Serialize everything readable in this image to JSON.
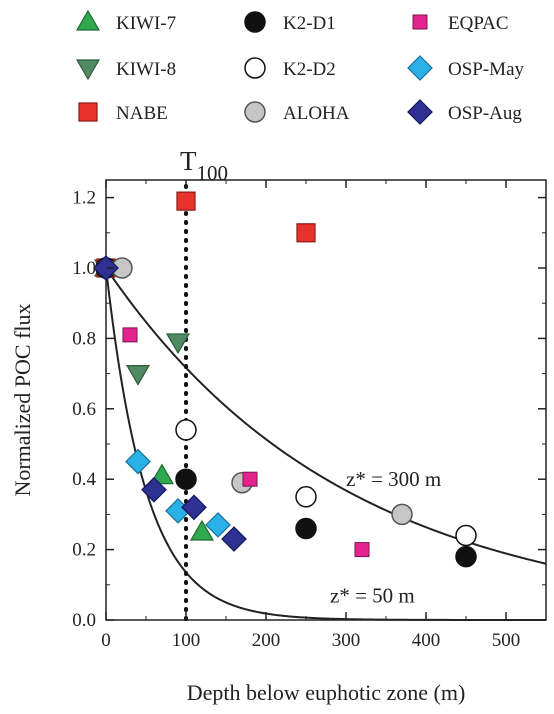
{
  "chart_data": {
    "type": "scatter",
    "title": "",
    "xlabel": "Depth below euphotic zone (m)",
    "ylabel": "Normalized POC flux",
    "xlim": [
      0,
      550
    ],
    "ylim": [
      0,
      1.25
    ],
    "x_ticks": [
      0,
      100,
      200,
      300,
      400,
      500
    ],
    "y_ticks": [
      0.0,
      0.2,
      0.4,
      0.6,
      0.8,
      1.0,
      1.2
    ],
    "x_tick_labels": [
      "0",
      "100",
      "200",
      "300",
      "400",
      "500"
    ],
    "y_tick_labels": [
      "0.0",
      "0.2",
      "0.4",
      "0.6",
      "0.8",
      "1.0",
      "1.2"
    ],
    "grid": false,
    "legend_position": "top, above plot (3 columns)",
    "series": [
      {
        "name": "KIWI-7",
        "marker": "triangle-up",
        "color": "#2fa84f",
        "stroke": "#1d6b30",
        "points": [
          [
            0,
            1.0
          ],
          [
            70,
            0.41
          ],
          [
            120,
            0.25
          ]
        ]
      },
      {
        "name": "KIWI-8",
        "marker": "triangle-down",
        "color": "#4f8a63",
        "stroke": "#2f5a3d",
        "points": [
          [
            0,
            1.0
          ],
          [
            40,
            0.7
          ],
          [
            90,
            0.79
          ]
        ]
      },
      {
        "name": "NABE",
        "marker": "square",
        "color": "#e8322c",
        "stroke": "#8a1a16",
        "points": [
          [
            0,
            1.0
          ],
          [
            100,
            1.19
          ],
          [
            250,
            1.1
          ]
        ]
      },
      {
        "name": "K2-D1",
        "marker": "circle",
        "color": "#111111",
        "stroke": "#111111",
        "points": [
          [
            0,
            1.0
          ],
          [
            100,
            0.4
          ],
          [
            250,
            0.26
          ],
          [
            450,
            0.18
          ]
        ]
      },
      {
        "name": "K2-D2",
        "marker": "circle",
        "color": "#ffffff",
        "stroke": "#111111",
        "points": [
          [
            0,
            1.0
          ],
          [
            100,
            0.54
          ],
          [
            250,
            0.35
          ],
          [
            450,
            0.24
          ]
        ]
      },
      {
        "name": "ALOHA",
        "marker": "circle",
        "color": "#c6c6c6",
        "stroke": "#555555",
        "points": [
          [
            20,
            1.0
          ],
          [
            170,
            0.39
          ],
          [
            370,
            0.3
          ]
        ]
      },
      {
        "name": "EQPAC",
        "marker": "square-small",
        "color": "#e4238e",
        "stroke": "#7a1450",
        "points": [
          [
            30,
            0.81
          ],
          [
            180,
            0.4
          ],
          [
            320,
            0.2
          ]
        ]
      },
      {
        "name": "OSP-May",
        "marker": "diamond",
        "color": "#2ab2e8",
        "stroke": "#1a6f94",
        "points": [
          [
            0,
            1.0
          ],
          [
            40,
            0.45
          ],
          [
            90,
            0.31
          ],
          [
            140,
            0.27
          ]
        ]
      },
      {
        "name": "OSP-Aug",
        "marker": "diamond",
        "color": "#2e3192",
        "stroke": "#14175a",
        "points": [
          [
            0,
            1.0
          ],
          [
            60,
            0.37
          ],
          [
            110,
            0.32
          ],
          [
            160,
            0.23
          ]
        ]
      }
    ],
    "curves": [
      {
        "label": "z* = 300 m",
        "z_star": 300,
        "label_anchor": [
          300,
          0.4
        ]
      },
      {
        "label": "z* = 50 m",
        "z_star": 50,
        "label_anchor": [
          280,
          0.07
        ]
      }
    ],
    "reference_line": {
      "label": "T",
      "label_subscript": "100",
      "x": 100
    }
  }
}
